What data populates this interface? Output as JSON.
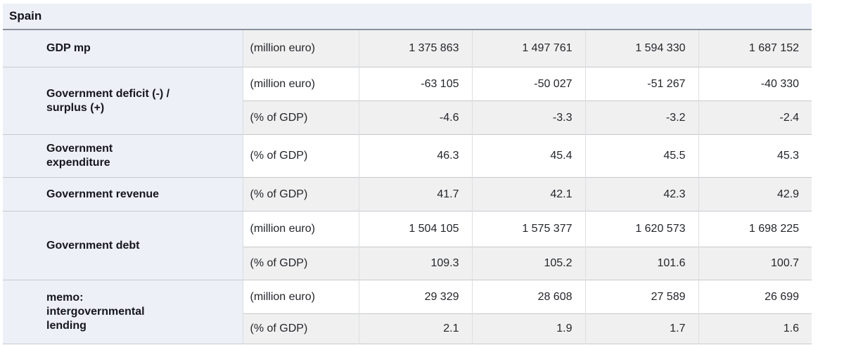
{
  "chart_data": {
    "type": "table",
    "title": "Spain",
    "groups": [
      {
        "label": "GDP mp",
        "rows": [
          {
            "unit": "(million euro)",
            "values": [
              "1 375 863",
              "1 497 761",
              "1 594 330",
              "1 687 152"
            ]
          }
        ]
      },
      {
        "label": "Government deficit (-) /\nsurplus (+)",
        "rows": [
          {
            "unit": "(million euro)",
            "values": [
              "-63 105",
              "-50 027",
              "-51 267",
              "-40 330"
            ]
          },
          {
            "unit": "(% of GDP)",
            "values": [
              "-4.6",
              "-3.3",
              "-3.2",
              "-2.4"
            ]
          }
        ]
      },
      {
        "label": "Government\nexpenditure",
        "rows": [
          {
            "unit": "(% of GDP)",
            "values": [
              "46.3",
              "45.4",
              "45.5",
              "45.3"
            ]
          }
        ]
      },
      {
        "label": "Government revenue",
        "rows": [
          {
            "unit": "(% of GDP)",
            "values": [
              "41.7",
              "42.1",
              "42.3",
              "42.9"
            ]
          }
        ]
      },
      {
        "label": "Government debt",
        "rows": [
          {
            "unit": "(million euro)",
            "values": [
              "1 504 105",
              "1 575 377",
              "1 620 573",
              "1 698 225"
            ]
          },
          {
            "unit": "(% of GDP)",
            "values": [
              "109.3",
              "105.2",
              "101.6",
              "100.7"
            ]
          }
        ]
      },
      {
        "label": "memo:\nintergovernmental\nlending",
        "rows": [
          {
            "unit": "(million euro)",
            "values": [
              "29 329",
              "28 608",
              "27 589",
              "26 699"
            ]
          },
          {
            "unit": "(% of GDP)",
            "values": [
              "2.1",
              "1.9",
              "1.7",
              "1.6"
            ]
          }
        ]
      }
    ],
    "style": {
      "label_column_bg": "#edf0f7",
      "stripe_gray": "#f0f0f0",
      "stripe_white": "#ffffff",
      "header_rule_color": "#8b919c",
      "grid_line_color": "#c6c9ce"
    }
  }
}
